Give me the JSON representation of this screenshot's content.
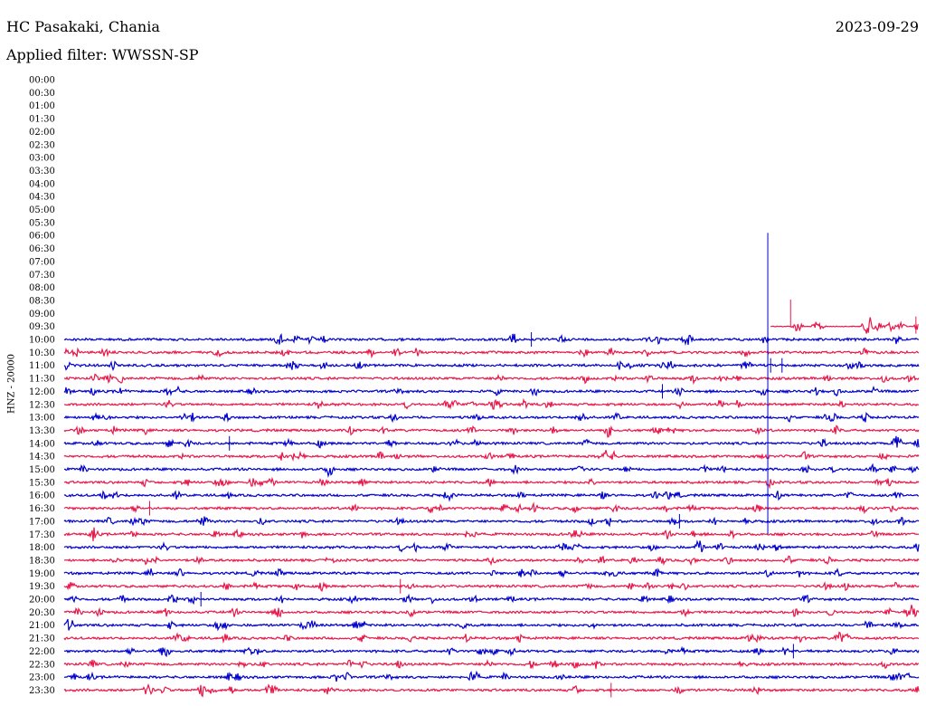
{
  "header": {
    "station": "HC Pasakaki, Chania",
    "filter": "Applied filter: WWSSN-SP",
    "date": "2023-09-29"
  },
  "channel_label": "HNZ - 20000",
  "colors": {
    "trace_a": "#0000cc",
    "trace_b": "#e8174a",
    "text": "#000000"
  },
  "chart_data": {
    "type": "line",
    "subtype": "helicorder",
    "rows": [
      "00:00",
      "00:30",
      "01:00",
      "01:30",
      "02:00",
      "02:30",
      "03:00",
      "03:30",
      "04:00",
      "04:30",
      "05:00",
      "05:30",
      "06:00",
      "06:30",
      "07:00",
      "07:30",
      "08:00",
      "08:30",
      "09:00",
      "09:30",
      "10:00",
      "10:30",
      "11:00",
      "11:30",
      "12:00",
      "12:30",
      "13:00",
      "13:30",
      "14:00",
      "14:30",
      "15:00",
      "15:30",
      "16:00",
      "16:30",
      "17:00",
      "17:30",
      "18:00",
      "18:30",
      "19:00",
      "19:30",
      "20:00",
      "20:30",
      "21:00",
      "21:30",
      "22:00",
      "22:30",
      "23:00",
      "23:30"
    ],
    "row_minutes": 30,
    "data_start": "09:30",
    "data_start_offset_min": 24.8,
    "colors_alternate": [
      "blue",
      "red"
    ],
    "events": [
      {
        "row": "06:00",
        "offset_min": 24.7,
        "note": "large spike spanning 06:00–17:30"
      },
      {
        "row": "08:30",
        "offset_min": 25.5,
        "note": "spike"
      },
      {
        "row": "09:30",
        "offset_min": 29.9,
        "note": "spike"
      },
      {
        "row": "10:00",
        "offset_min": 16.4
      },
      {
        "row": "11:00",
        "offset_min": 24.8
      },
      {
        "row": "11:00",
        "offset_min": 25.2
      },
      {
        "row": "12:00",
        "offset_min": 21.0
      },
      {
        "row": "14:00",
        "offset_min": 5.8
      },
      {
        "row": "16:30",
        "offset_min": 3.0
      },
      {
        "row": "17:00",
        "offset_min": 21.6
      },
      {
        "row": "19:30",
        "offset_min": 11.8
      },
      {
        "row": "20:00",
        "offset_min": 4.8
      },
      {
        "row": "22:00",
        "offset_min": 25.6
      },
      {
        "row": "23:30",
        "offset_min": 19.2
      }
    ]
  }
}
